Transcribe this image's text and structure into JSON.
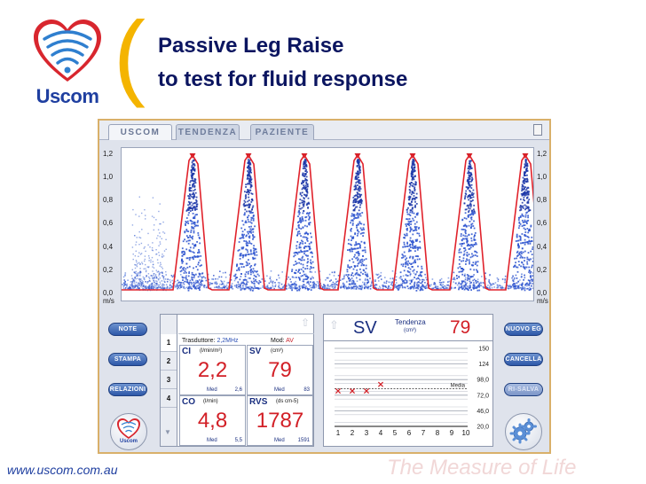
{
  "slide": {
    "logo_text": "Uscom",
    "title_line1": "Passive Leg Raise",
    "title_line2": "to test for fluid response",
    "footer_url": "www.uscom.com.au",
    "tagline": "The Measure of Life"
  },
  "tabs": [
    "USCOM",
    "TENDENZA",
    "PAZIENTE"
  ],
  "doppler": {
    "y_ticks": [
      "1,2",
      "1,0",
      "0,8",
      "0,6",
      "0,4",
      "0,2",
      "0,0"
    ],
    "unit": "m/s"
  },
  "buttons_left": [
    "NOTE",
    "STAMPA",
    "RELAZIONI"
  ],
  "buttons_right": [
    "NUOVO EG",
    "CANCELLA",
    "RI-SALVA"
  ],
  "round_logo_text": "Uscom",
  "measurements": {
    "row_numbers": [
      "1",
      "2",
      "3",
      "4"
    ],
    "transducer_label": "Trasduttore:",
    "transducer_value": "2,2MHz",
    "mode_label": "Mod:",
    "mode_value": "AV",
    "med_label": "Med",
    "cells": [
      {
        "name": "CI",
        "unit": "(l/min/m²)",
        "value": "2,2",
        "med": "2,6"
      },
      {
        "name": "SV",
        "unit": "(cm³)",
        "value": "79",
        "med": "83"
      },
      {
        "name": "CO",
        "unit": "(l/min)",
        "value": "4,8",
        "med": "5,5"
      },
      {
        "name": "RVS",
        "unit": "(ds cm-5)",
        "value": "1787",
        "med": "1591"
      }
    ]
  },
  "trend": {
    "param": "SV",
    "label": "Tendenza",
    "unit": "(cm³)",
    "value": "79",
    "media_label": "Media",
    "y_ticks": [
      "150",
      "124",
      "98,0",
      "72,0",
      "46,0",
      "20,0"
    ],
    "x_ticks": [
      "1",
      "2",
      "3",
      "4",
      "5",
      "6",
      "7",
      "8",
      "9",
      "10"
    ],
    "points": [
      {
        "x": 1,
        "y": 79
      },
      {
        "x": 2,
        "y": 79
      },
      {
        "x": 3,
        "y": 79
      },
      {
        "x": 4,
        "y": 90
      }
    ],
    "media": 83,
    "ylim": [
      20,
      150
    ]
  },
  "colors": {
    "title": "#0b1560",
    "accent": "#f4b400",
    "value_red": "#d21f26",
    "navy": "#1a2f80"
  }
}
